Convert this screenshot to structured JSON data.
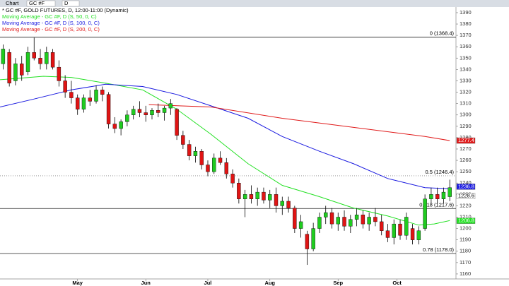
{
  "toolbar": {
    "tab": "Chart",
    "symbol": "GC #F",
    "interval": "D"
  },
  "chart_data": {
    "type": "candlestick",
    "title": "* GC #F, GOLD FUTURES, D, 12:00-11:00 (Dynamic)",
    "xlim": [
      0,
      147
    ],
    "xticks": [
      {
        "value": 25,
        "label": "May"
      },
      {
        "value": 47,
        "label": "Jun"
      },
      {
        "value": 67,
        "label": "Jul"
      },
      {
        "value": 87,
        "label": "Aug"
      },
      {
        "value": 109,
        "label": "Sep"
      },
      {
        "value": 128,
        "label": "Oct"
      }
    ],
    "ylim": [
      1155.6,
      1393.7
    ],
    "yticks": [
      1160,
      1170,
      1180,
      1190,
      1200,
      1210,
      1220,
      1230,
      1240,
      1250,
      1260,
      1270,
      1280,
      1290,
      1300,
      1310,
      1320,
      1330,
      1340,
      1350,
      1360,
      1370,
      1380,
      1390
    ],
    "up_color": "#1fcc1f",
    "down_color": "#e01414",
    "candles": {
      "x": [
        1,
        3,
        5,
        7,
        9,
        11,
        13,
        15,
        17,
        19,
        21,
        23,
        25,
        27,
        29,
        31,
        33,
        35,
        37,
        39,
        41,
        43,
        45,
        47,
        49,
        51,
        53,
        55,
        57,
        59,
        61,
        63,
        65,
        67,
        69,
        71,
        73,
        75,
        77,
        79,
        81,
        83,
        85,
        87,
        89,
        91,
        93,
        95,
        97,
        99,
        101,
        103,
        105,
        107,
        109,
        111,
        113,
        115,
        117,
        119,
        121,
        123,
        125,
        127,
        129,
        131,
        133,
        135,
        137,
        139,
        141,
        143,
        145
      ],
      "open": [
        1345,
        1355,
        1330,
        1345,
        1338,
        1355,
        1350,
        1345,
        1355,
        1342,
        1330,
        1320,
        1315,
        1305,
        1315,
        1312,
        1322,
        1318,
        1292,
        1288,
        1294,
        1300,
        1305,
        1302,
        1300,
        1304,
        1302,
        1306,
        1305,
        1282,
        1274,
        1264,
        1268,
        1256,
        1250,
        1262,
        1258,
        1248,
        1240,
        1226,
        1230,
        1226,
        1232,
        1225,
        1230,
        1220,
        1224,
        1218,
        1200,
        1195,
        1182,
        1200,
        1210,
        1214,
        1204,
        1210,
        1202,
        1208,
        1212,
        1204,
        1210,
        1206,
        1198,
        1192,
        1204,
        1194,
        1200,
        1190,
        1200,
        1226,
        1230,
        1226,
        1228
      ],
      "high": [
        1362,
        1358,
        1350,
        1352,
        1360,
        1368,
        1358,
        1360,
        1358,
        1348,
        1335,
        1330,
        1318,
        1318,
        1322,
        1326,
        1325,
        1320,
        1298,
        1296,
        1304,
        1308,
        1312,
        1308,
        1306,
        1310,
        1308,
        1314,
        1306,
        1286,
        1278,
        1272,
        1270,
        1260,
        1266,
        1268,
        1262,
        1252,
        1244,
        1234,
        1238,
        1236,
        1236,
        1234,
        1236,
        1228,
        1228,
        1220,
        1212,
        1198,
        1205,
        1214,
        1220,
        1218,
        1214,
        1216,
        1212,
        1218,
        1216,
        1214,
        1218,
        1212,
        1204,
        1208,
        1208,
        1214,
        1204,
        1202,
        1230,
        1236,
        1236,
        1236,
        1243
      ],
      "low": [
        1340,
        1325,
        1326,
        1330,
        1335,
        1348,
        1340,
        1340,
        1340,
        1325,
        1315,
        1310,
        1300,
        1302,
        1308,
        1310,
        1312,
        1288,
        1284,
        1282,
        1290,
        1296,
        1298,
        1294,
        1296,
        1298,
        1295,
        1300,
        1278,
        1270,
        1260,
        1258,
        1252,
        1246,
        1248,
        1256,
        1244,
        1236,
        1222,
        1210,
        1222,
        1220,
        1222,
        1218,
        1214,
        1212,
        1214,
        1196,
        1192,
        1168,
        1180,
        1196,
        1204,
        1200,
        1198,
        1198,
        1196,
        1202,
        1200,
        1198,
        1202,
        1194,
        1188,
        1186,
        1190,
        1190,
        1186,
        1186,
        1198,
        1222,
        1222,
        1222,
        1224
      ],
      "close": [
        1358,
        1328,
        1345,
        1335,
        1355,
        1350,
        1345,
        1355,
        1342,
        1330,
        1320,
        1315,
        1305,
        1315,
        1312,
        1322,
        1318,
        1292,
        1288,
        1294,
        1300,
        1305,
        1302,
        1300,
        1304,
        1302,
        1306,
        1310,
        1282,
        1274,
        1264,
        1268,
        1256,
        1250,
        1262,
        1258,
        1248,
        1240,
        1226,
        1230,
        1226,
        1232,
        1225,
        1230,
        1220,
        1224,
        1218,
        1200,
        1206,
        1182,
        1200,
        1210,
        1214,
        1204,
        1210,
        1202,
        1208,
        1212,
        1204,
        1210,
        1206,
        1198,
        1192,
        1204,
        1194,
        1210,
        1190,
        1198,
        1226,
        1230,
        1226,
        1232,
        1236
      ]
    },
    "series": [
      {
        "name": "Moving Average - GC #F, D (S, 50, 0, C)",
        "color": "#22e022",
        "x": [
          0,
          5,
          14,
          23,
          34,
          46,
          57,
          68,
          80,
          91,
          103,
          114,
          125,
          135,
          140,
          145
        ],
        "values": [
          1331,
          1332,
          1334,
          1333,
          1328,
          1322,
          1305,
          1283,
          1257,
          1238,
          1228,
          1218,
          1211,
          1203,
          1204,
          1207
        ]
      },
      {
        "name": "Moving Average - GC #F, D (S, 100, 0, C)",
        "color": "#1a1ae0",
        "x": [
          0,
          11,
          23,
          34,
          46,
          57,
          68,
          80,
          91,
          103,
          114,
          125,
          137,
          145
        ],
        "values": [
          1307,
          1314,
          1322,
          1327,
          1325,
          1318,
          1308,
          1297,
          1281,
          1268,
          1257,
          1244,
          1236,
          1235
        ]
      },
      {
        "name": "Moving Average - GC #F, D (S, 200, 0, C)",
        "color": "#e01a1a",
        "x": [
          48,
          68,
          91,
          114,
          137,
          145
        ],
        "values": [
          1309,
          1307,
          1297,
          1289,
          1281,
          1277.4
        ]
      }
    ],
    "levels": [
      {
        "value": 1368.4,
        "label": "0 (1368.4)",
        "dash": false
      },
      {
        "value": 1246.4,
        "label": "0.5 (1246.4)",
        "dash": true
      },
      {
        "value": 1217.6,
        "label": "0.618 (1217.6)",
        "dash": false
      },
      {
        "value": 1178.0,
        "label": "0.78 (1178.0)",
        "dash": false
      }
    ],
    "price_tags": [
      {
        "value": 1277.4,
        "label": "1277.4",
        "color": "#e01a1a"
      },
      {
        "value": 1236.8,
        "label": "1236.8",
        "color": "#1a1ae0"
      },
      {
        "value": 1228.6,
        "label": "1228.6",
        "color": "#ffffff"
      },
      {
        "value": 1206.8,
        "label": "1206.8",
        "color": "#22e022"
      }
    ]
  }
}
